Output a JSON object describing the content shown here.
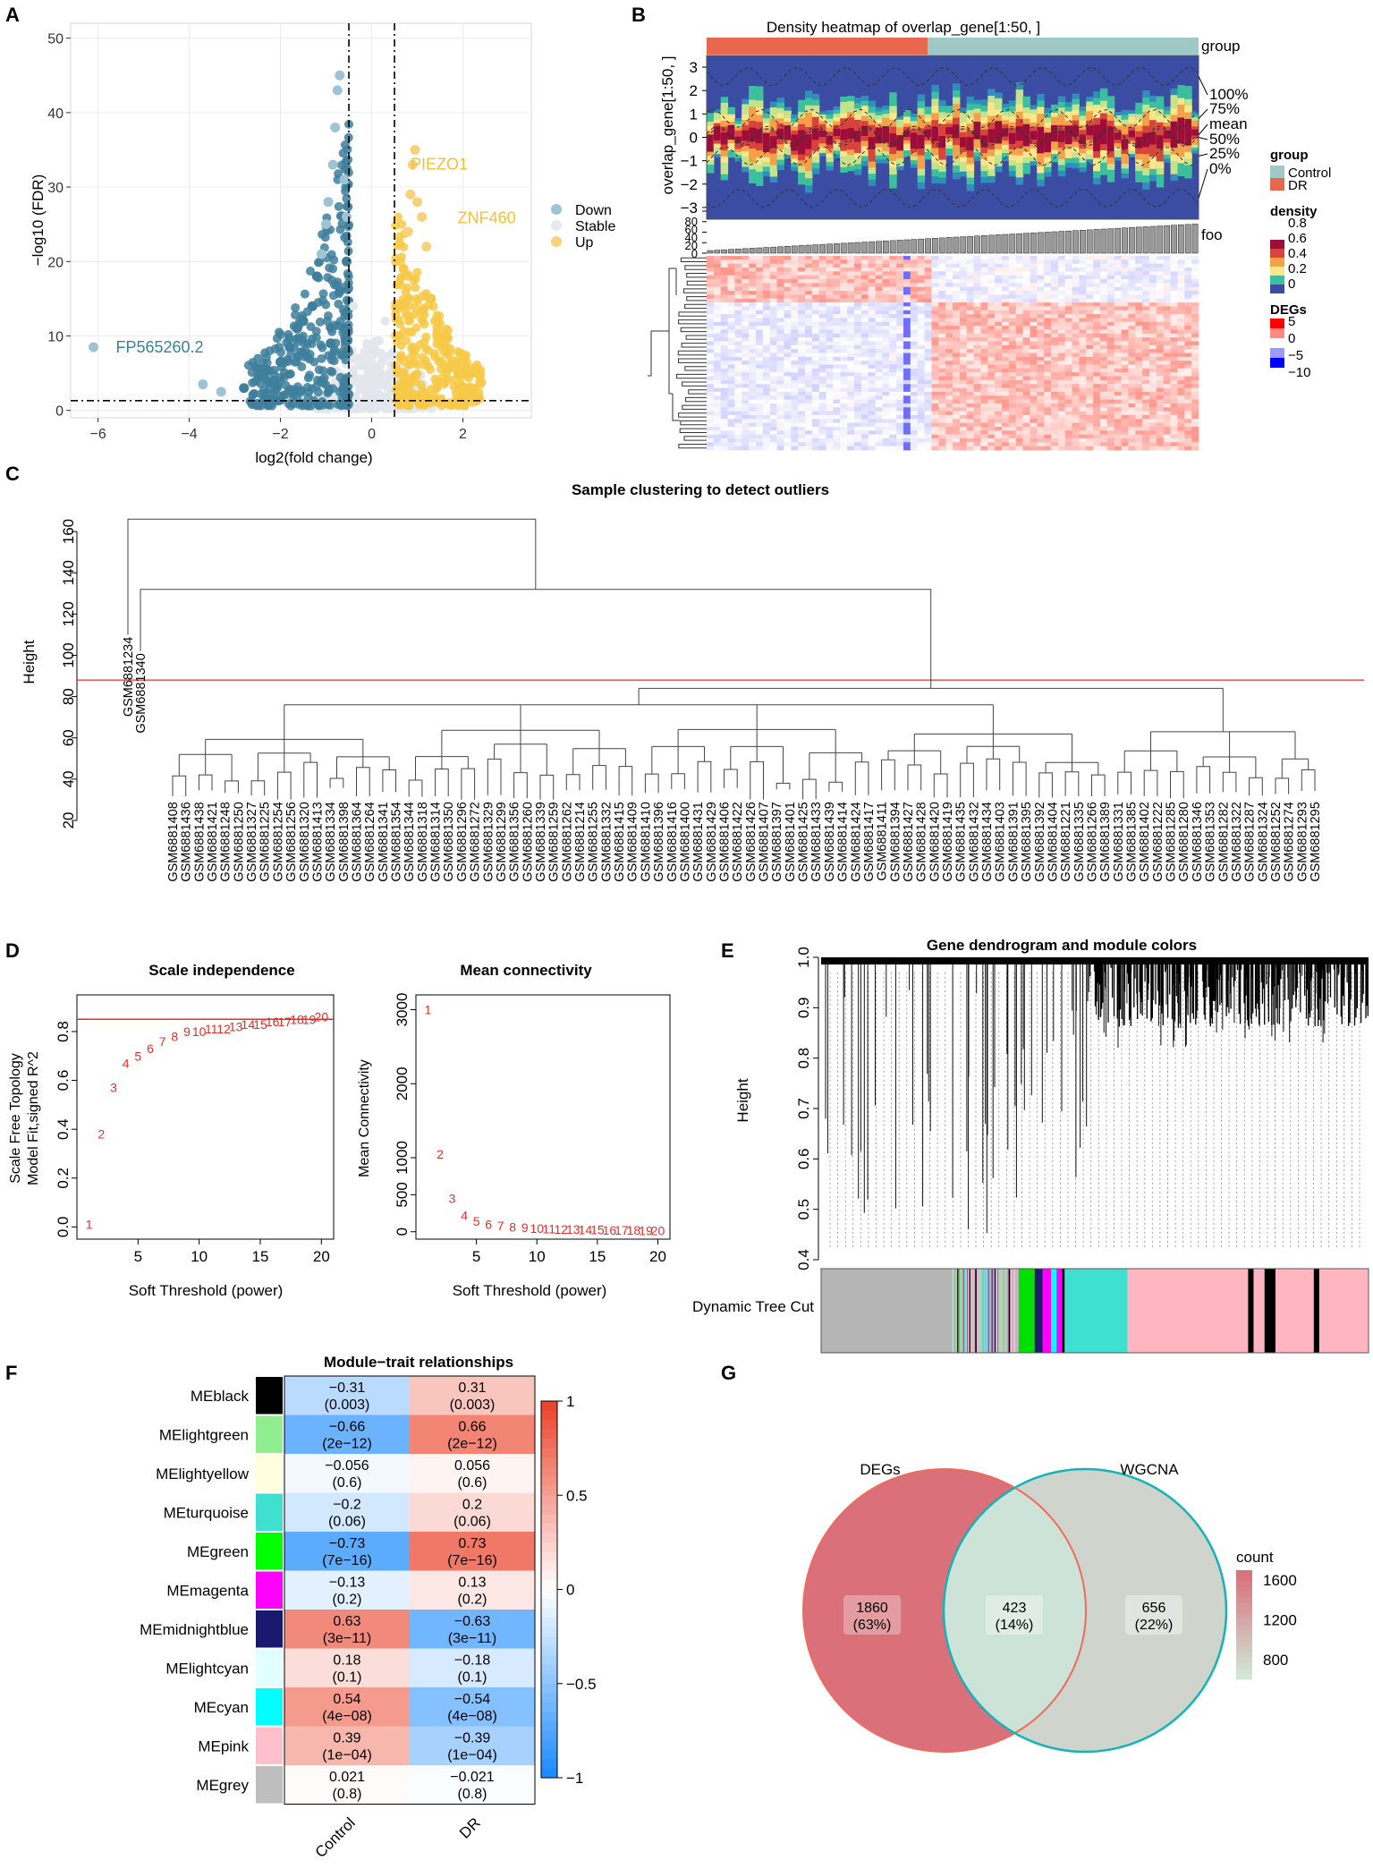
{
  "panels": {
    "A": "A",
    "B": "B",
    "C": "C",
    "D": "D",
    "E": "E",
    "F": "F",
    "G": "G"
  },
  "chart_data": [
    {
      "panel": "A",
      "type": "scatter",
      "title": "",
      "xlabel": "log2(fold change)",
      "ylabel": "−log10 (FDR)",
      "xlim": [
        -6.6,
        3.5
      ],
      "ylim": [
        -1,
        52
      ],
      "xticks": [
        "−6",
        "−4",
        "−2",
        "0",
        "2"
      ],
      "xtick_values": [
        -6,
        -4,
        -2,
        0,
        2
      ],
      "yticks": [
        "0",
        "10",
        "20",
        "30",
        "40",
        "50"
      ],
      "ytick_values": [
        0,
        10,
        20,
        30,
        40,
        50
      ],
      "thresholds": {
        "logfc": [
          -0.5,
          0.5
        ],
        "fdr": 1.3
      },
      "legend": [
        {
          "name": "Down",
          "color": "#9ec3d4"
        },
        {
          "name": "Stable",
          "color": "#e6eaee"
        },
        {
          "name": "Up",
          "color": "#f6d27a"
        }
      ],
      "series": [
        {
          "name": "Down",
          "color": "#3e7f9c",
          "points": [
            [
              -6.1,
              8.5
            ],
            [
              -3.7,
              3.5
            ],
            [
              -3.3,
              2.5
            ],
            [
              -2.8,
              3
            ],
            [
              -2.4,
              5.5
            ],
            [
              -2.2,
              1.5
            ],
            [
              -2.0,
              6.5
            ],
            [
              -1.8,
              8.5
            ],
            [
              -1.5,
              12
            ],
            [
              -1.3,
              14
            ],
            [
              -1.2,
              18
            ],
            [
              -1.1,
              21
            ],
            [
              -1.0,
              25
            ],
            [
              -0.95,
              28
            ],
            [
              -0.85,
              33
            ],
            [
              -0.8,
              38
            ],
            [
              -0.75,
              43
            ],
            [
              -0.7,
              45
            ],
            [
              -0.6,
              11
            ],
            [
              -0.6,
              31
            ],
            [
              -0.55,
              26
            ],
            [
              -0.55,
              20
            ],
            [
              -0.7,
              16
            ],
            [
              -0.9,
              9
            ]
          ]
        },
        {
          "name": "Up",
          "color": "#f7c948",
          "points": [
            [
              0.6,
              10
            ],
            [
              0.7,
              19
            ],
            [
              0.8,
              24
            ],
            [
              0.85,
              29
            ],
            [
              0.9,
              33
            ],
            [
              0.95,
              35
            ],
            [
              1.0,
              28
            ],
            [
              1.1,
              26
            ],
            [
              1.2,
              22
            ],
            [
              1.3,
              15
            ],
            [
              1.45,
              12
            ],
            [
              1.6,
              9
            ],
            [
              1.9,
              5
            ],
            [
              2.2,
              3
            ],
            [
              0.7,
              5
            ],
            [
              0.65,
              14
            ]
          ]
        },
        {
          "name": "Stable",
          "color": "#e6eaee",
          "points": [
            [
              -0.4,
              4
            ],
            [
              -0.2,
              6
            ],
            [
              0,
              3
            ],
            [
              0.2,
              5
            ],
            [
              0.4,
              2
            ],
            [
              -0.3,
              1
            ],
            [
              0.1,
              8
            ],
            [
              -0.1,
              9
            ],
            [
              0.3,
              12
            ],
            [
              -0.4,
              14
            ]
          ]
        }
      ],
      "annotations": [
        {
          "label": "FP565260.2",
          "x": -6.1,
          "y": 8.5,
          "color": "#3e7f9c"
        },
        {
          "label": "PIEZO1",
          "x": 0.95,
          "y": 31.5,
          "color": "#f2c233"
        },
        {
          "label": "ZNF460",
          "x": 1.65,
          "y": 25.5,
          "color": "#f2c233"
        }
      ]
    },
    {
      "panel": "B",
      "type": "heatmap",
      "title": "Density heatmap of overlap_gene[1:50, ]",
      "ylabel": "overlap_gene[1:50, ]",
      "density_yticks": [
        "3",
        "2",
        "1",
        "0",
        "−1",
        "−2",
        "−3"
      ],
      "density_ytick_values": [
        3,
        2,
        1,
        0,
        -1,
        -2,
        -3
      ],
      "quantile_labels": [
        "100%",
        "75%",
        "mean",
        "50%",
        "25%",
        "0%"
      ],
      "group_label": "group",
      "groups": [
        {
          "name": "Control",
          "color": "#9fc9c5"
        },
        {
          "name": "DR",
          "color": "#e8684f"
        }
      ],
      "group_split": 0.45,
      "bar_label": "foo",
      "bar_yticks": [
        "80",
        "60",
        "40",
        "20",
        "0"
      ],
      "bar_ytick_values": [
        80,
        60,
        40,
        20,
        0
      ],
      "n_columns": 70,
      "n_rows": 50,
      "legend_density": {
        "title": "density",
        "ticks": [
          "0.8",
          "0.6",
          "0.4",
          "0.2",
          "0"
        ]
      },
      "legend_degs": {
        "title": "DEGs",
        "ticks": [
          "5",
          "0",
          "−5",
          "−10"
        ]
      }
    },
    {
      "panel": "C",
      "type": "dendrogram",
      "title": "Sample clustering to detect outliers",
      "ylabel": "Height",
      "ylim": [
        20,
        170
      ],
      "yticks": [
        "20",
        "40",
        "60",
        "80",
        "100",
        "120",
        "140",
        "160"
      ],
      "ytick_values": [
        20,
        40,
        60,
        80,
        100,
        120,
        140,
        160
      ],
      "cut_height": 88,
      "outliers": [
        {
          "label": "GSM6881234",
          "height": 166
        },
        {
          "label": "GSM6881340",
          "height": 132
        }
      ],
      "leaves": [
        "GSM6881408",
        "GSM6881436",
        "GSM6881438",
        "GSM6881421",
        "GSM6881248",
        "GSM6881250",
        "GSM6881327",
        "GSM6881225",
        "GSM6881254",
        "GSM6881256",
        "GSM6881320",
        "GSM6881413",
        "GSM6881334",
        "GSM6881398",
        "GSM6881364",
        "GSM6881264",
        "GSM6881341",
        "GSM6881354",
        "GSM6881344",
        "GSM6881318",
        "GSM6881314",
        "GSM6881350",
        "GSM6881296",
        "GSM6881272",
        "GSM6881329",
        "GSM6881299",
        "GSM6881356",
        "GSM6881260",
        "GSM6881339",
        "GSM6881259",
        "GSM6881262",
        "GSM6881214",
        "GSM6881255",
        "GSM6881332",
        "GSM6881415",
        "GSM6881409",
        "GSM6881410",
        "GSM6881396",
        "GSM6881416",
        "GSM6881400",
        "GSM6881431",
        "GSM6881429",
        "GSM6881406",
        "GSM6881422",
        "GSM6881426",
        "GSM6881407",
        "GSM6881397",
        "GSM6881401",
        "GSM6881425",
        "GSM6881433",
        "GSM6881439",
        "GSM6881414",
        "GSM6881424",
        "GSM6881417",
        "GSM6881411",
        "GSM6881394",
        "GSM6881427",
        "GSM6881428",
        "GSM6881420",
        "GSM6881419",
        "GSM6881435",
        "GSM6881432",
        "GSM6881434",
        "GSM6881403",
        "GSM6881391",
        "GSM6881395",
        "GSM6881392",
        "GSM6881404",
        "GSM6881221",
        "GSM6881335",
        "GSM6881266",
        "GSM6881389",
        "GSM6881331",
        "GSM6881385",
        "GSM6881402",
        "GSM6881222",
        "GSM6881285",
        "GSM6881280",
        "GSM6881346",
        "GSM6881353",
        "GSM6881282",
        "GSM6881322",
        "GSM6881287",
        "GSM6881324",
        "GSM6881252",
        "GSM6881274",
        "GSM6881293",
        "GSM6881295"
      ]
    },
    {
      "panel": "D1",
      "type": "scatter",
      "title": "Scale independence",
      "xlabel": "Soft Threshold (power)",
      "ylabel_lines": [
        "Scale Free Topology",
        "Model Fit,signed R^2"
      ],
      "xlim": [
        0,
        21
      ],
      "ylim": [
        -0.05,
        0.95
      ],
      "xticks": [
        "5",
        "10",
        "15",
        "20"
      ],
      "xtick_values": [
        5,
        10,
        15,
        20
      ],
      "yticks": [
        "0.0",
        "0.2",
        "0.4",
        "0.6",
        "0.8"
      ],
      "ytick_values": [
        0,
        0.2,
        0.4,
        0.6,
        0.8
      ],
      "hline": 0.85,
      "x": [
        1,
        2,
        3,
        4,
        5,
        6,
        7,
        8,
        9,
        10,
        11,
        12,
        13,
        14,
        15,
        16,
        17,
        18,
        19,
        20
      ],
      "values": [
        0.01,
        0.38,
        0.57,
        0.67,
        0.7,
        0.73,
        0.76,
        0.78,
        0.8,
        0.8,
        0.81,
        0.81,
        0.82,
        0.83,
        0.83,
        0.84,
        0.84,
        0.85,
        0.85,
        0.86
      ]
    },
    {
      "panel": "D2",
      "type": "scatter",
      "title": "Mean connectivity",
      "xlabel": "Soft Threshold (power)",
      "ylabel": "Mean Connectivity",
      "xlim": [
        0,
        21
      ],
      "ylim": [
        -100,
        3200
      ],
      "xticks": [
        "5",
        "10",
        "15",
        "20"
      ],
      "xtick_values": [
        5,
        10,
        15,
        20
      ],
      "yticks": [
        "0",
        "500",
        "1000",
        "2000",
        "3000"
      ],
      "ytick_values": [
        0,
        500,
        1000,
        2000,
        3000
      ],
      "x": [
        1,
        2,
        3,
        4,
        5,
        6,
        7,
        8,
        9,
        10,
        11,
        12,
        13,
        14,
        15,
        16,
        17,
        18,
        19,
        20
      ],
      "values": [
        3000,
        1050,
        450,
        220,
        140,
        100,
        80,
        65,
        55,
        45,
        40,
        35,
        30,
        28,
        25,
        22,
        20,
        18,
        16,
        15
      ]
    },
    {
      "panel": "E",
      "type": "dendrogram",
      "title": "Gene dendrogram and module colors",
      "ylabel": "Height",
      "ylim": [
        0.4,
        1.0
      ],
      "yticks": [
        "0.4",
        "0.5",
        "0.6",
        "0.7",
        "0.8",
        "0.9",
        "1.0"
      ],
      "ytick_values": [
        0.4,
        0.5,
        0.6,
        0.7,
        0.8,
        0.9,
        1.0
      ],
      "colorbar_label": "Dynamic Tree Cut",
      "module_segments": [
        {
          "color": "#b5b5b5",
          "start": 0,
          "end": 0.24
        },
        {
          "color": "#9ed27e",
          "start": 0.24,
          "end": 0.26
        },
        {
          "color": "#d7b9d7",
          "start": 0.26,
          "end": 0.36
        },
        {
          "color": "#00e000",
          "start": 0.36,
          "end": 0.39
        },
        {
          "color": "#1d1b6a",
          "start": 0.39,
          "end": 0.405
        },
        {
          "color": "#ff00ff",
          "start": 0.405,
          "end": 0.42
        },
        {
          "color": "#00ffff",
          "start": 0.42,
          "end": 0.43
        },
        {
          "color": "#ff00ff",
          "start": 0.43,
          "end": 0.44
        },
        {
          "color": "#000000",
          "start": 0.44,
          "end": 0.445
        },
        {
          "color": "#40e0d0",
          "start": 0.445,
          "end": 0.56
        },
        {
          "color": "#ffb6c1",
          "start": 0.56,
          "end": 0.78
        },
        {
          "color": "#000000",
          "start": 0.78,
          "end": 0.79
        },
        {
          "color": "#ffb6c1",
          "start": 0.79,
          "end": 0.81
        },
        {
          "color": "#000000",
          "start": 0.81,
          "end": 0.83
        },
        {
          "color": "#ffb6c1",
          "start": 0.83,
          "end": 0.9
        },
        {
          "color": "#000000",
          "start": 0.9,
          "end": 0.91
        },
        {
          "color": "#ffb6c1",
          "start": 0.91,
          "end": 1
        }
      ]
    },
    {
      "panel": "F",
      "type": "heatmap",
      "title": "Module−trait relationships",
      "columns": [
        "Control",
        "DR"
      ],
      "rows": [
        {
          "name": "MEblack",
          "color": "#000000",
          "values": [
            "−0.31",
            "0.31"
          ],
          "p": [
            "(0.003)",
            "(0.003)"
          ],
          "num": [
            -0.31,
            0.31
          ]
        },
        {
          "name": "MElightgreen",
          "color": "#90ee90",
          "values": [
            "−0.66",
            "0.66"
          ],
          "p": [
            "(2e−12)",
            "(2e−12)"
          ],
          "num": [
            -0.66,
            0.66
          ]
        },
        {
          "name": "MElightyellow",
          "color": "#ffffe0",
          "values": [
            "−0.056",
            "0.056"
          ],
          "p": [
            "(0.6)",
            "(0.6)"
          ],
          "num": [
            -0.056,
            0.056
          ]
        },
        {
          "name": "MEturquoise",
          "color": "#40e0d0",
          "values": [
            "−0.2",
            "0.2"
          ],
          "p": [
            "(0.06)",
            "(0.06)"
          ],
          "num": [
            -0.2,
            0.2
          ]
        },
        {
          "name": "MEgreen",
          "color": "#00ff00",
          "values": [
            "−0.73",
            "0.73"
          ],
          "p": [
            "(7e−16)",
            "(7e−16)"
          ],
          "num": [
            -0.73,
            0.73
          ]
        },
        {
          "name": "MEmagenta",
          "color": "#ff00ff",
          "values": [
            "−0.13",
            "0.13"
          ],
          "p": [
            "(0.2)",
            "(0.2)"
          ],
          "num": [
            -0.13,
            0.13
          ]
        },
        {
          "name": "MEmidnightblue",
          "color": "#191970",
          "values": [
            "0.63",
            "−0.63"
          ],
          "p": [
            "(3e−11)",
            "(3e−11)"
          ],
          "num": [
            0.63,
            -0.63
          ]
        },
        {
          "name": "MElightcyan",
          "color": "#e0ffff",
          "values": [
            "0.18",
            "−0.18"
          ],
          "p": [
            "(0.1)",
            "(0.1)"
          ],
          "num": [
            0.18,
            -0.18
          ]
        },
        {
          "name": "MEcyan",
          "color": "#00ffff",
          "values": [
            "0.54",
            "−0.54"
          ],
          "p": [
            "(4e−08)",
            "(4e−08)"
          ],
          "num": [
            0.54,
            -0.54
          ]
        },
        {
          "name": "MEpink",
          "color": "#ffc0cb",
          "values": [
            "0.39",
            "−0.39"
          ],
          "p": [
            "(1e−04)",
            "(1e−04)"
          ],
          "num": [
            0.39,
            -0.39
          ]
        },
        {
          "name": "MEgrey",
          "color": "#bebebe",
          "values": [
            "0.021",
            "−0.021"
          ],
          "p": [
            "(0.8)",
            "(0.8)"
          ],
          "num": [
            0.021,
            -0.021
          ]
        }
      ],
      "colorbar_ticks": [
        "1",
        "0.5",
        "0",
        "−0.5",
        "−1"
      ],
      "colorbar_tick_values": [
        1,
        0.5,
        0,
        -0.5,
        -1
      ]
    },
    {
      "panel": "G",
      "type": "venn",
      "sets": [
        {
          "name": "DEGs",
          "color": "#d9707a",
          "stroke": "#f06a5c"
        },
        {
          "name": "WGCNA",
          "color": "#cfd4cc",
          "stroke": "#14b3b8"
        }
      ],
      "regions": [
        {
          "label": "1860",
          "percent": "(63%)",
          "count": 1860,
          "color": "#d7727a"
        },
        {
          "label": "423",
          "percent": "(14%)",
          "count": 423,
          "color": "#cde3d8"
        },
        {
          "label": "656",
          "percent": "(22%)",
          "count": 656,
          "color": "#cfd4cc"
        }
      ],
      "legend_title": "count",
      "legend_ticks": [
        "1600",
        "1200",
        "800"
      ],
      "legend_tick_values": [
        1600,
        1200,
        800
      ]
    }
  ]
}
